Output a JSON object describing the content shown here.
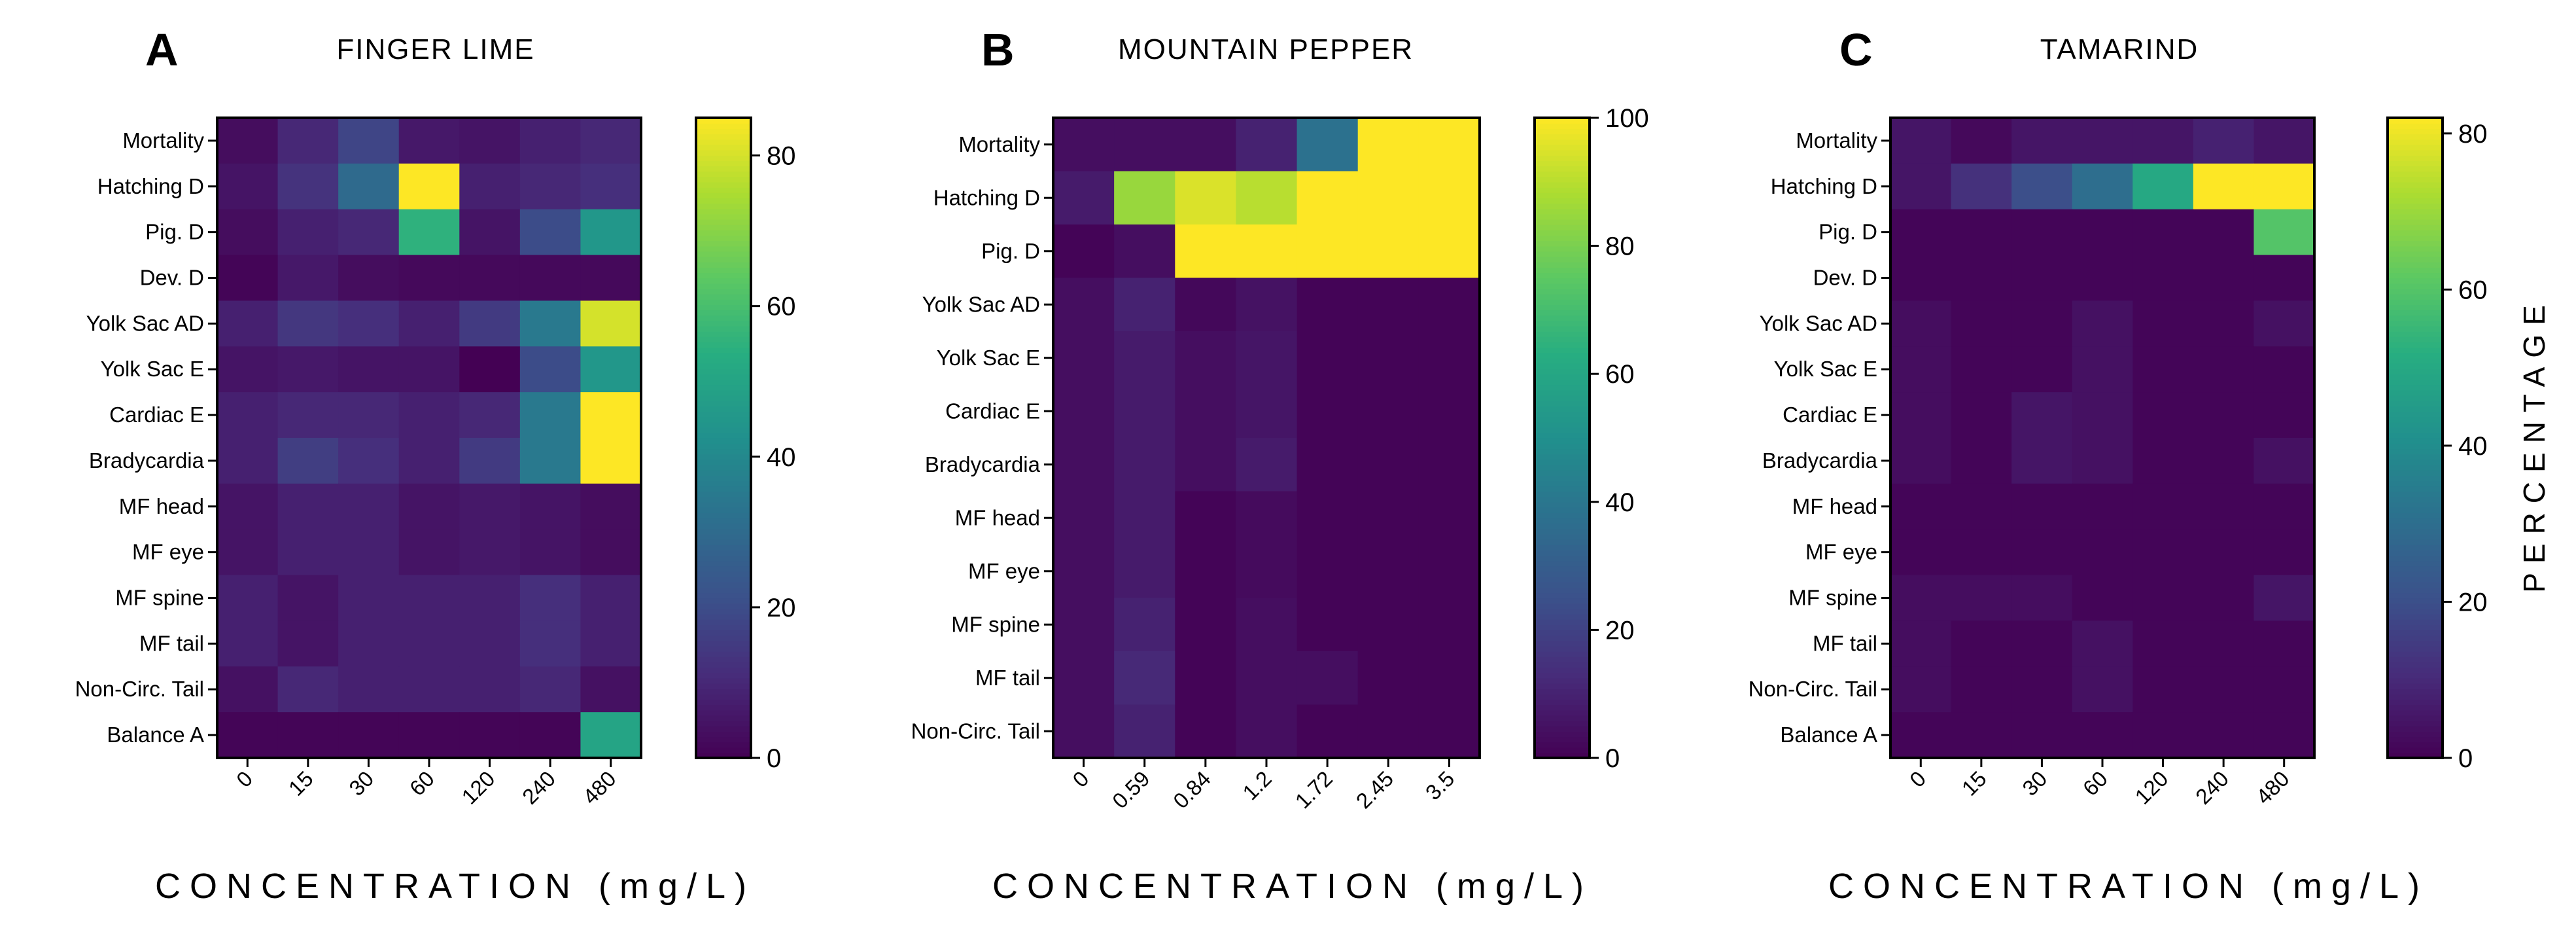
{
  "chart_data": [
    {
      "type": "heatmap",
      "panel_letter": "A",
      "title": "FINGER LIME",
      "xlabel": "CONCENTRATION (mg/L)",
      "columns": [
        "0",
        "15",
        "30",
        "60",
        "120",
        "240",
        "480"
      ],
      "rows": [
        "Mortality",
        "Hatching D",
        "Pig. D",
        "Dev. D",
        "Yolk Sac AD",
        "Yolk Sac E",
        "Cardiac E",
        "Bradycardia",
        "MF head",
        "MF eye",
        "MF spine",
        "MF tail",
        "Non-Circ. Tail",
        "Balance A"
      ],
      "values": [
        [
          3,
          10,
          18,
          6,
          5,
          8,
          10
        ],
        [
          5,
          13,
          30,
          85,
          8,
          10,
          12
        ],
        [
          3,
          8,
          10,
          55,
          5,
          20,
          45
        ],
        [
          1,
          6,
          3,
          2,
          2,
          2,
          2
        ],
        [
          8,
          14,
          12,
          8,
          15,
          35,
          80
        ],
        [
          5,
          6,
          5,
          5,
          0,
          20,
          45
        ],
        [
          8,
          10,
          10,
          8,
          10,
          35,
          85
        ],
        [
          8,
          16,
          12,
          8,
          15,
          35,
          85
        ],
        [
          5,
          8,
          8,
          5,
          6,
          5,
          3
        ],
        [
          5,
          8,
          8,
          5,
          6,
          5,
          3
        ],
        [
          8,
          5,
          8,
          8,
          8,
          12,
          8
        ],
        [
          8,
          5,
          8,
          8,
          8,
          12,
          8
        ],
        [
          4,
          10,
          8,
          8,
          8,
          10,
          4
        ],
        [
          1,
          1,
          1,
          1,
          1,
          1,
          50
        ]
      ],
      "colorbar": {
        "min": 0,
        "max": 85,
        "ticks": [
          0,
          20,
          40,
          60,
          80
        ]
      }
    },
    {
      "type": "heatmap",
      "panel_letter": "B",
      "title": "MOUNTAIN PEPPER",
      "xlabel": "CONCENTRATION (mg/L)",
      "columns": [
        "0",
        "0.59",
        "0.84",
        "1.2",
        "1.72",
        "2.45",
        "3.5"
      ],
      "rows": [
        "Mortality",
        "Hatching D",
        "Pig. D",
        "Yolk Sac AD",
        "Yolk Sac E",
        "Cardiac E",
        "Bradycardia",
        "MF head",
        "MF eye",
        "MF spine",
        "MF tail",
        "Non-Circ. Tail"
      ],
      "values": [
        [
          4,
          4,
          4,
          10,
          38,
          100,
          100
        ],
        [
          8,
          85,
          95,
          90,
          100,
          100,
          100
        ],
        [
          1,
          4,
          100,
          100,
          100,
          100,
          100
        ],
        [
          4,
          10,
          2,
          5,
          1,
          1,
          1
        ],
        [
          4,
          8,
          4,
          6,
          1,
          1,
          1
        ],
        [
          4,
          8,
          4,
          6,
          1,
          1,
          1
        ],
        [
          4,
          8,
          4,
          8,
          1,
          1,
          1
        ],
        [
          4,
          8,
          1,
          3,
          1,
          1,
          1
        ],
        [
          4,
          8,
          1,
          3,
          1,
          1,
          1
        ],
        [
          4,
          10,
          1,
          4,
          1,
          1,
          1
        ],
        [
          4,
          12,
          1,
          4,
          4,
          1,
          1
        ],
        [
          4,
          10,
          1,
          4,
          1,
          1,
          1
        ]
      ],
      "colorbar": {
        "min": 0,
        "max": 100,
        "ticks": [
          0,
          20,
          40,
          60,
          80,
          100
        ]
      }
    },
    {
      "type": "heatmap",
      "panel_letter": "C",
      "title": "TAMARIND",
      "xlabel": "CONCENTRATION (mg/L)",
      "colorbar_label": "PERCENTAGE",
      "columns": [
        "0",
        "15",
        "30",
        "60",
        "120",
        "240",
        "480"
      ],
      "rows": [
        "Mortality",
        "Hatching D",
        "Pig. D",
        "Dev. D",
        "Yolk Sac AD",
        "Yolk Sac E",
        "Cardiac E",
        "Bradycardia",
        "MF head",
        "MF eye",
        "MF spine",
        "MF tail",
        "Non-Circ. Tail",
        "Balance A"
      ],
      "values": [
        [
          5,
          2,
          5,
          5,
          5,
          8,
          5
        ],
        [
          5,
          12,
          20,
          30,
          50,
          82,
          82
        ],
        [
          1,
          1,
          1,
          1,
          1,
          1,
          60
        ],
        [
          1,
          1,
          1,
          1,
          1,
          1,
          1
        ],
        [
          3,
          1,
          1,
          4,
          1,
          1,
          4
        ],
        [
          3,
          1,
          1,
          4,
          1,
          1,
          1
        ],
        [
          3,
          1,
          5,
          4,
          1,
          1,
          1
        ],
        [
          3,
          1,
          5,
          4,
          1,
          1,
          4
        ],
        [
          1,
          1,
          1,
          1,
          1,
          1,
          1
        ],
        [
          1,
          1,
          1,
          1,
          1,
          1,
          1
        ],
        [
          3,
          3,
          3,
          1,
          1,
          1,
          5
        ],
        [
          3,
          1,
          1,
          4,
          1,
          1,
          1
        ],
        [
          3,
          1,
          1,
          4,
          1,
          1,
          1
        ],
        [
          1,
          1,
          1,
          1,
          1,
          1,
          1
        ]
      ],
      "colorbar": {
        "min": 0,
        "max": 82,
        "ticks": [
          0,
          20,
          40,
          60,
          80
        ]
      }
    }
  ]
}
